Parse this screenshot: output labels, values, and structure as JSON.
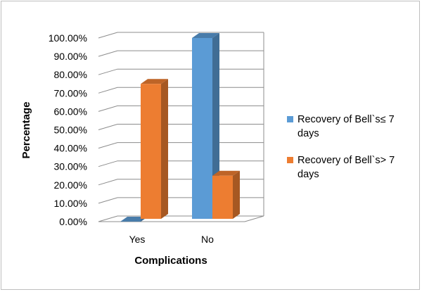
{
  "chart_data": {
    "type": "bar",
    "style": "3d-clustered-column",
    "categories": [
      "Yes",
      "No"
    ],
    "series": [
      {
        "name": "Recovery of Bell`s≤ 7 days",
        "legend_lines": [
          "Recovery of Bell`s≤ 7",
          "days"
        ],
        "color": "#5B9BD5",
        "values": [
          0,
          100
        ]
      },
      {
        "name": "Recovery of Bell`s> 7 days",
        "legend_lines": [
          "Recovery of Bell`s> 7",
          "days"
        ],
        "color": "#ED7D31",
        "values": [
          75,
          25
        ]
      }
    ],
    "xlabel": "Complications",
    "ylabel": "Percentage",
    "ylim": [
      0,
      100
    ],
    "yticks": [
      "0.00%",
      "10.00%",
      "20.00%",
      "30.00%",
      "40.00%",
      "50.00%",
      "60.00%",
      "70.00%",
      "80.00%",
      "90.00%",
      "100.00%"
    ],
    "grid": true,
    "legend_position": "right"
  }
}
